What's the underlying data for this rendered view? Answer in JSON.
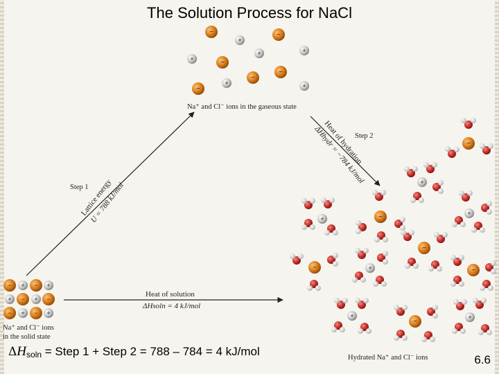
{
  "title": "The Solution Process for NaCl",
  "labels": {
    "gaseous": "Na⁺ and Cl⁻ ions in the gaseous state",
    "step1": "Step 1",
    "step2": "Step 2",
    "lattice_energy": "Lattice energy",
    "lattice_value": "U = 788 kJ/mol",
    "heat_of_hydration": "Heat of hydration",
    "hydration_value": "ΔHhydr = −784 kJ/mol",
    "heat_of_solution": "Heat of solution",
    "solution_value": "ΔHsoln = 4 kJ/mol",
    "solid_line1": "Na⁺ and Cl⁻ ions",
    "solid_line2": "in the solid state",
    "hydrated": "Hydrated Na⁺ and Cl⁻ ions"
  },
  "formula": {
    "delta": "Δ",
    "h": "H",
    "sub": "soln",
    "text": " = Step 1 + Step 2 = 788 – 784 = 4 kJ/mol"
  },
  "page_number": "6.6",
  "colors": {
    "sodium": "#d9801c",
    "chloride": "#c4c4c4",
    "oxygen": "#c9302c",
    "hydrogen": "#e4e4e4",
    "arrow": "#222222"
  }
}
